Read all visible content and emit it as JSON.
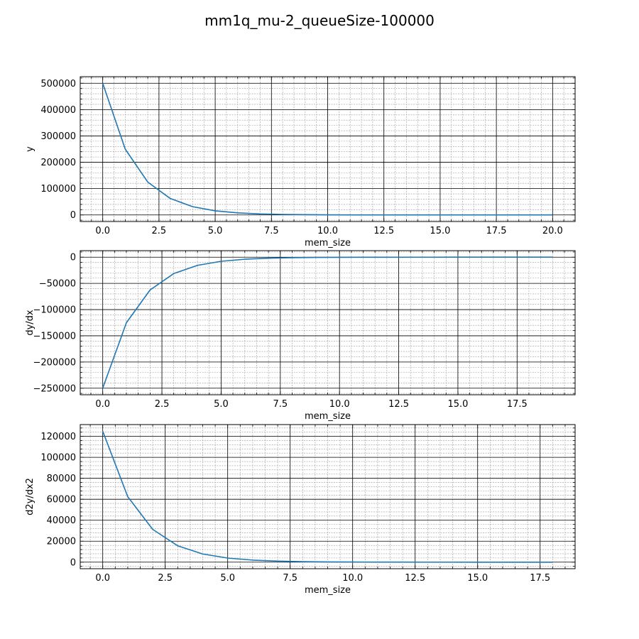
{
  "figure": {
    "title": "mm1q_mu-2_queueSize-100000"
  },
  "chart_data": [
    {
      "type": "line",
      "xlabel": "mem_size",
      "ylabel": "y",
      "xlim": [
        -1,
        21
      ],
      "ylim": [
        -25000,
        525000
      ],
      "grid": true,
      "x_ticks": [
        0,
        2.5,
        5,
        7.5,
        10,
        12.5,
        15,
        17.5,
        20
      ],
      "x_tick_labels": [
        "0.0",
        "2.5",
        "5.0",
        "7.5",
        "10.0",
        "12.5",
        "15.0",
        "17.5",
        "20.0"
      ],
      "y_ticks": [
        0,
        100000,
        200000,
        300000,
        400000,
        500000
      ],
      "y_tick_labels": [
        "0",
        "100000",
        "200000",
        "300000",
        "400000",
        "500000"
      ],
      "color": "#1f77b4",
      "x": [
        0,
        1,
        2,
        3,
        4,
        5,
        6,
        7,
        8,
        9,
        10,
        11,
        12,
        13,
        14,
        15,
        16,
        17,
        18,
        19,
        20
      ],
      "y": [
        500000,
        250000,
        125000,
        62500,
        31250,
        15625,
        7813,
        3906,
        1953,
        977,
        488,
        244,
        122,
        61,
        31,
        15,
        8,
        4,
        2,
        1,
        0
      ]
    },
    {
      "type": "line",
      "xlabel": "mem_size",
      "ylabel": "dy/dx",
      "xlim": [
        -0.95,
        19.95
      ],
      "ylim": [
        -262500,
        12500
      ],
      "grid": true,
      "x_ticks": [
        0,
        2.5,
        5,
        7.5,
        10,
        12.5,
        15,
        17.5
      ],
      "x_tick_labels": [
        "0.0",
        "2.5",
        "5.0",
        "7.5",
        "10.0",
        "12.5",
        "15.0",
        "17.5"
      ],
      "y_ticks": [
        -250000,
        -200000,
        -150000,
        -100000,
        -50000,
        0
      ],
      "y_tick_labels": [
        "−250000",
        "−200000",
        "−150000",
        "−100000",
        "−50000",
        "0"
      ],
      "color": "#1f77b4",
      "x": [
        0,
        1,
        2,
        3,
        4,
        5,
        6,
        7,
        8,
        9,
        10,
        11,
        12,
        13,
        14,
        15,
        16,
        17,
        18,
        19
      ],
      "y": [
        -250000,
        -125000,
        -62500,
        -31250,
        -15625,
        -7813,
        -3906,
        -1953,
        -977,
        -488,
        -244,
        -122,
        -61,
        -31,
        -15,
        -8,
        -4,
        -2,
        -1,
        0
      ]
    },
    {
      "type": "line",
      "xlabel": "mem_size",
      "ylabel": "d2y/dx2",
      "xlim": [
        -0.9,
        18.9
      ],
      "ylim": [
        -6250,
        131250
      ],
      "grid": true,
      "x_ticks": [
        0,
        2.5,
        5,
        7.5,
        10,
        12.5,
        15,
        17.5
      ],
      "x_tick_labels": [
        "0.0",
        "2.5",
        "5.0",
        "7.5",
        "10.0",
        "12.5",
        "15.0",
        "17.5"
      ],
      "y_ticks": [
        0,
        20000,
        40000,
        60000,
        80000,
        100000,
        120000
      ],
      "y_tick_labels": [
        "0",
        "20000",
        "40000",
        "60000",
        "80000",
        "100000",
        "120000"
      ],
      "color": "#1f77b4",
      "x": [
        0,
        1,
        2,
        3,
        4,
        5,
        6,
        7,
        8,
        9,
        10,
        11,
        12,
        13,
        14,
        15,
        16,
        17,
        18
      ],
      "y": [
        125000,
        62500,
        31250,
        15625,
        7813,
        3906,
        1953,
        977,
        488,
        244,
        122,
        61,
        31,
        15,
        8,
        4,
        2,
        1,
        0
      ]
    }
  ]
}
